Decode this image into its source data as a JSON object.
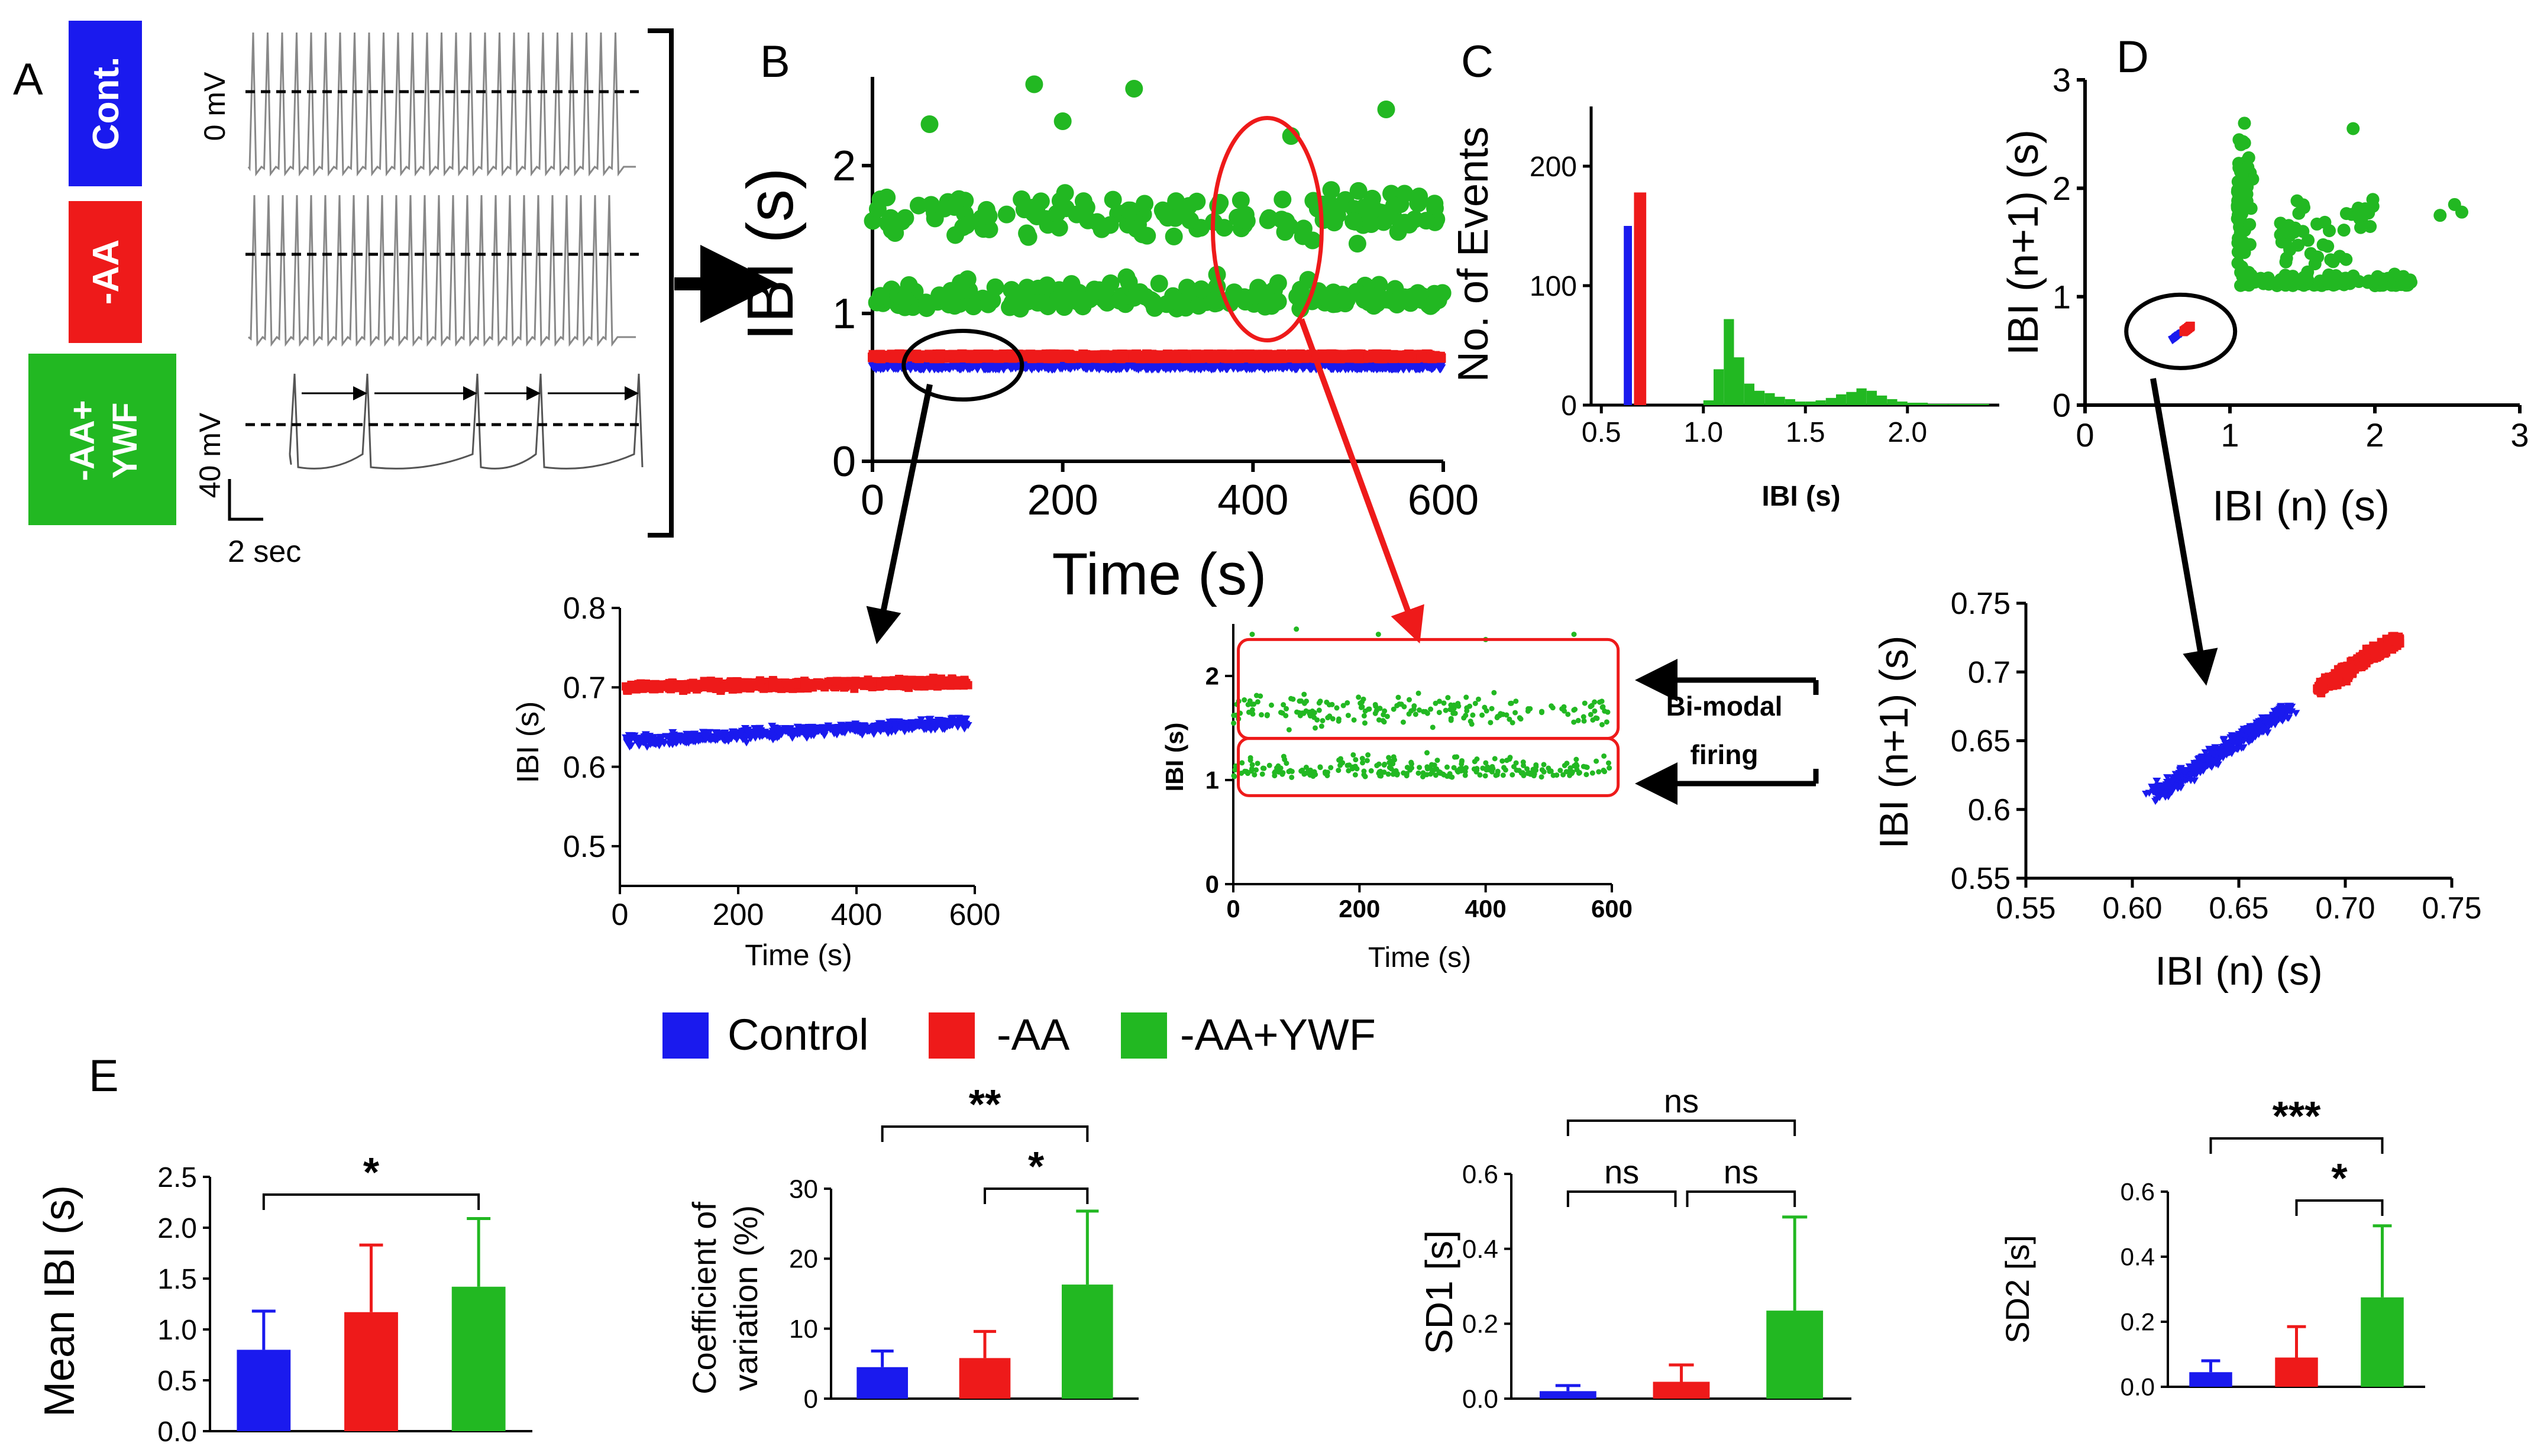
{
  "colors": {
    "control": "#1a1aee",
    "aa": "#ee1a1a",
    "ywf": "#22b822",
    "black": "#000000"
  },
  "panel_letters": {
    "a": "A",
    "b": "B",
    "c": "C",
    "d": "D",
    "e": "E"
  },
  "panel_a": {
    "condition_labels": [
      "Cont.",
      "-AA",
      "-AA+\nYWF"
    ],
    "voltage_label": "0 mV",
    "scale_voltage": "40 mV",
    "scale_time": "2 sec"
  },
  "legend": {
    "items": [
      "Control",
      "-AA",
      "-AA+YWF"
    ]
  },
  "bimodal_label": [
    "Bi-modal",
    "firing"
  ],
  "chart_data": [
    {
      "id": "B",
      "type": "scatter",
      "title": "",
      "xlabel": "Time (s)",
      "ylabel": "IBI (s)",
      "xlim": [
        0,
        600
      ],
      "ylim": [
        0,
        2.6
      ],
      "xticks": [
        0,
        200,
        400,
        600
      ],
      "yticks": [
        0,
        1,
        2
      ],
      "series": [
        {
          "name": "Control",
          "approx": "IBI ≈ 0.62–0.67 s across 0–600 s"
        },
        {
          "name": "-AA",
          "approx": "IBI ≈ 0.69–0.72 s across 0–600 s"
        },
        {
          "name": "-AA+YWF",
          "approx": "bimodal: cluster ≈ 1.0–1.3 s and cluster ≈ 1.5–2.1 s; scattered outliers up to ≈ 2.6 s"
        }
      ]
    },
    {
      "id": "B-zoom-left",
      "type": "scatter",
      "title": "",
      "xlabel": "Time (s)",
      "ylabel": "IBI (s)",
      "xlim": [
        0,
        600
      ],
      "ylim": [
        0.45,
        0.8
      ],
      "xticks": [
        0,
        200,
        400,
        600
      ],
      "yticks": [
        0.5,
        0.6,
        0.7,
        0.8
      ],
      "series": [
        {
          "name": "Control",
          "start": 0.63,
          "end": 0.66
        },
        {
          "name": "-AA",
          "start": 0.7,
          "end": 0.71
        }
      ]
    },
    {
      "id": "B-zoom-right",
      "type": "scatter",
      "title": "",
      "xlabel": "Time (s)",
      "ylabel": "IBI (s)",
      "xlim": [
        0,
        600
      ],
      "ylim": [
        0,
        2.5
      ],
      "xticks": [
        0,
        200,
        400,
        600
      ],
      "yticks": [
        0,
        1,
        2
      ],
      "series": [
        {
          "name": "-AA+YWF",
          "clusters": [
            [
              1.0,
              1.3
            ],
            [
              1.5,
              2.1
            ]
          ]
        }
      ]
    },
    {
      "id": "C",
      "type": "bar",
      "title": "",
      "xlabel": "IBI (s)",
      "ylabel": "No. of Events",
      "xlim": [
        0.45,
        2.45
      ],
      "ylim": [
        0,
        250
      ],
      "xticks": [
        0.5,
        1.0,
        1.5,
        2.0
      ],
      "yticks": [
        0,
        100,
        200
      ],
      "series": [
        {
          "name": "Control",
          "bins": [
            [
              0.61,
              0.65,
              150
            ]
          ]
        },
        {
          "name": "-AA",
          "bins": [
            [
              0.66,
              0.72,
              178
            ]
          ]
        },
        {
          "name": "-AA+YWF",
          "bins": [
            [
              1.0,
              1.05,
              4
            ],
            [
              1.05,
              1.1,
              30
            ],
            [
              1.1,
              1.15,
              72
            ],
            [
              1.15,
              1.2,
              40
            ],
            [
              1.2,
              1.25,
              18
            ],
            [
              1.25,
              1.3,
              12
            ],
            [
              1.3,
              1.35,
              10
            ],
            [
              1.35,
              1.4,
              7
            ],
            [
              1.4,
              1.45,
              5
            ],
            [
              1.45,
              1.5,
              3
            ],
            [
              1.5,
              1.55,
              3
            ],
            [
              1.55,
              1.6,
              4
            ],
            [
              1.6,
              1.65,
              6
            ],
            [
              1.65,
              1.7,
              9
            ],
            [
              1.7,
              1.75,
              11
            ],
            [
              1.75,
              1.8,
              14
            ],
            [
              1.8,
              1.85,
              12
            ],
            [
              1.85,
              1.9,
              8
            ],
            [
              1.9,
              1.95,
              5
            ],
            [
              1.95,
              2.0,
              3
            ],
            [
              2.0,
              2.05,
              2
            ],
            [
              2.05,
              2.1,
              2
            ],
            [
              2.1,
              2.2,
              1
            ],
            [
              2.2,
              2.4,
              1
            ]
          ]
        }
      ]
    },
    {
      "id": "D",
      "type": "scatter",
      "title": "",
      "xlabel": "IBI (n) (s)",
      "ylabel": "IBI (n+1) (s)",
      "xlim": [
        0,
        3
      ],
      "ylim": [
        0,
        3
      ],
      "xticks": [
        0,
        1,
        2,
        3
      ],
      "yticks": [
        0,
        1,
        2,
        3
      ],
      "series": [
        {
          "name": "Control",
          "approx": "x ≈ 0.6–0.67, y ≈ 0.6–0.67"
        },
        {
          "name": "-AA",
          "approx": "x ≈ 0.68–0.73, y ≈ 0.68–0.73"
        },
        {
          "name": "-AA+YWF",
          "approx": "x ≈ 1.0–2.6, y ≈ 1.0–2.6; L-shaped distribution"
        }
      ]
    },
    {
      "id": "D-zoom",
      "type": "scatter",
      "title": "",
      "xlabel": "IBI (n) (s)",
      "ylabel": "IBI (n+1) (s)",
      "xlim": [
        0.55,
        0.75
      ],
      "ylim": [
        0.55,
        0.75
      ],
      "xticks": [
        0.55,
        0.6,
        0.65,
        0.7,
        0.75
      ],
      "yticks": [
        0.55,
        0.6,
        0.65,
        0.7,
        0.75
      ],
      "series": [
        {
          "name": "Control",
          "center": [
            0.64,
            0.64
          ],
          "range": [
            0.61,
            0.675
          ]
        },
        {
          "name": "-AA",
          "center": [
            0.705,
            0.705
          ],
          "range": [
            0.685,
            0.725
          ]
        }
      ]
    },
    {
      "id": "E1",
      "type": "bar",
      "title": "",
      "xlabel": "",
      "ylabel": "Mean IBI (s)",
      "categories": [
        "Control",
        "-AA",
        "-AA+YWF"
      ],
      "values": [
        0.8,
        1.17,
        1.42
      ],
      "errors": [
        0.38,
        0.66,
        0.67
      ],
      "ylim": [
        0,
        2.5
      ],
      "yticks": [
        0,
        0.5,
        1.0,
        1.5,
        2.0,
        2.5
      ],
      "yticklabels": [
        "0.0",
        "0.5",
        "1.0",
        "1.5",
        "2.0",
        "2.5"
      ],
      "significance": [
        {
          "pair": [
            0,
            2
          ],
          "label": "*"
        }
      ]
    },
    {
      "id": "E2",
      "type": "bar",
      "title": "",
      "xlabel": "",
      "ylabel": "Coefficient of variation (%)",
      "ylabel_lines": [
        "Coefficient of",
        "variation (%)"
      ],
      "categories": [
        "Control",
        "-AA",
        "-AA+YWF"
      ],
      "values": [
        4.5,
        5.8,
        16.3
      ],
      "errors": [
        2.3,
        3.8,
        10.5
      ],
      "ylim": [
        0,
        30
      ],
      "yticks": [
        0,
        10,
        20,
        30
      ],
      "yticklabels": [
        "0",
        "10",
        "20",
        "30"
      ],
      "significance": [
        {
          "pair": [
            0,
            2
          ],
          "label": "**"
        },
        {
          "pair": [
            1,
            2
          ],
          "label": "*"
        }
      ]
    },
    {
      "id": "E3",
      "type": "bar",
      "title": "",
      "xlabel": "",
      "ylabel": "SD1 [s]",
      "categories": [
        "Control",
        "-AA",
        "-AA+YWF"
      ],
      "values": [
        0.02,
        0.045,
        0.235
      ],
      "errors": [
        0.015,
        0.045,
        0.25
      ],
      "ylim": [
        0,
        0.6
      ],
      "yticks": [
        0,
        0.2,
        0.4,
        0.6
      ],
      "yticklabels": [
        "0.0",
        "0.2",
        "0.4",
        "0.6"
      ],
      "significance": [
        {
          "pair": [
            0,
            2
          ],
          "label": "ns"
        },
        {
          "pair": [
            0,
            1
          ],
          "label": "ns"
        },
        {
          "pair": [
            1,
            2
          ],
          "label": "ns"
        }
      ]
    },
    {
      "id": "E4",
      "type": "bar",
      "title": "",
      "xlabel": "",
      "ylabel": "SD2 [s]",
      "categories": [
        "Control",
        "-AA",
        "-AA+YWF"
      ],
      "values": [
        0.045,
        0.09,
        0.275
      ],
      "errors": [
        0.035,
        0.095,
        0.22
      ],
      "ylim": [
        0,
        0.6
      ],
      "yticks": [
        0,
        0.2,
        0.4,
        0.6
      ],
      "yticklabels": [
        "0.0",
        "0.2",
        "0.4",
        "0.6"
      ],
      "significance": [
        {
          "pair": [
            0,
            2
          ],
          "label": "***"
        },
        {
          "pair": [
            1,
            2
          ],
          "label": "*"
        }
      ]
    }
  ]
}
